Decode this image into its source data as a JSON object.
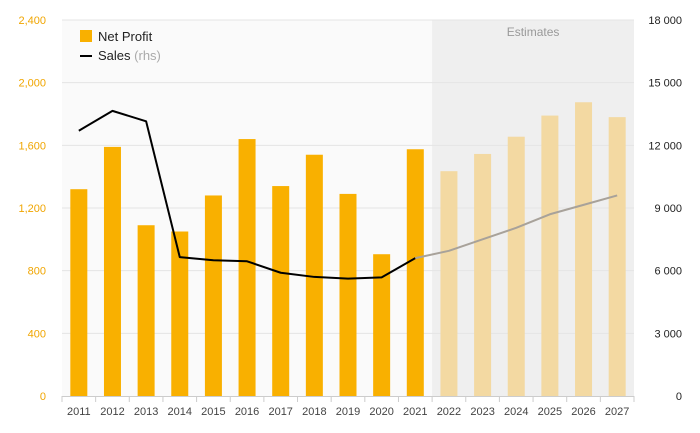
{
  "chart_data": {
    "type": "bar",
    "categories": [
      "2011",
      "2012",
      "2013",
      "2014",
      "2015",
      "2016",
      "2017",
      "2018",
      "2019",
      "2020",
      "2021",
      "2022",
      "2023",
      "2024",
      "2025",
      "2026",
      "2027"
    ],
    "series": [
      {
        "name": "Net Profit",
        "type": "bar",
        "axis": "left",
        "color": "#f9b000",
        "estimate_color": "#f3d9a2",
        "values": [
          1320,
          1590,
          1090,
          1050,
          1280,
          1640,
          1340,
          1540,
          1290,
          905,
          1575,
          1435,
          1545,
          1655,
          1790,
          1875,
          1780
        ]
      },
      {
        "name": "Sales",
        "name_suffix": "(rhs)",
        "type": "line",
        "axis": "right",
        "color": "#000000",
        "estimate_color": "#a8a29a",
        "values": [
          12700,
          13650,
          13150,
          6650,
          6500,
          6450,
          5900,
          5700,
          5620,
          5680,
          6600,
          6950,
          7500,
          8050,
          8700,
          9150,
          9600
        ]
      }
    ],
    "estimates_start_index": 11,
    "estimates_label": "Estimates",
    "estimates_bg": "#efefef",
    "y_left": {
      "ylim": [
        0,
        2400
      ],
      "ticks": [
        0,
        400,
        800,
        1200,
        1600,
        2000,
        2400
      ],
      "tick_labels": [
        "0",
        "400",
        "800",
        "1,200",
        "1,600",
        "2,000",
        "2,400"
      ],
      "color": "#f0a500"
    },
    "y_right": {
      "ylim": [
        0,
        18000
      ],
      "ticks": [
        0,
        3000,
        6000,
        9000,
        12000,
        15000,
        18000
      ],
      "tick_labels": [
        "0",
        "3 000",
        "6 000",
        "9 000",
        "12 000",
        "15 000",
        "18 000"
      ]
    },
    "grid": true,
    "legend_position": "top-left",
    "title": "",
    "xlabel": "",
    "ylabel": ""
  }
}
